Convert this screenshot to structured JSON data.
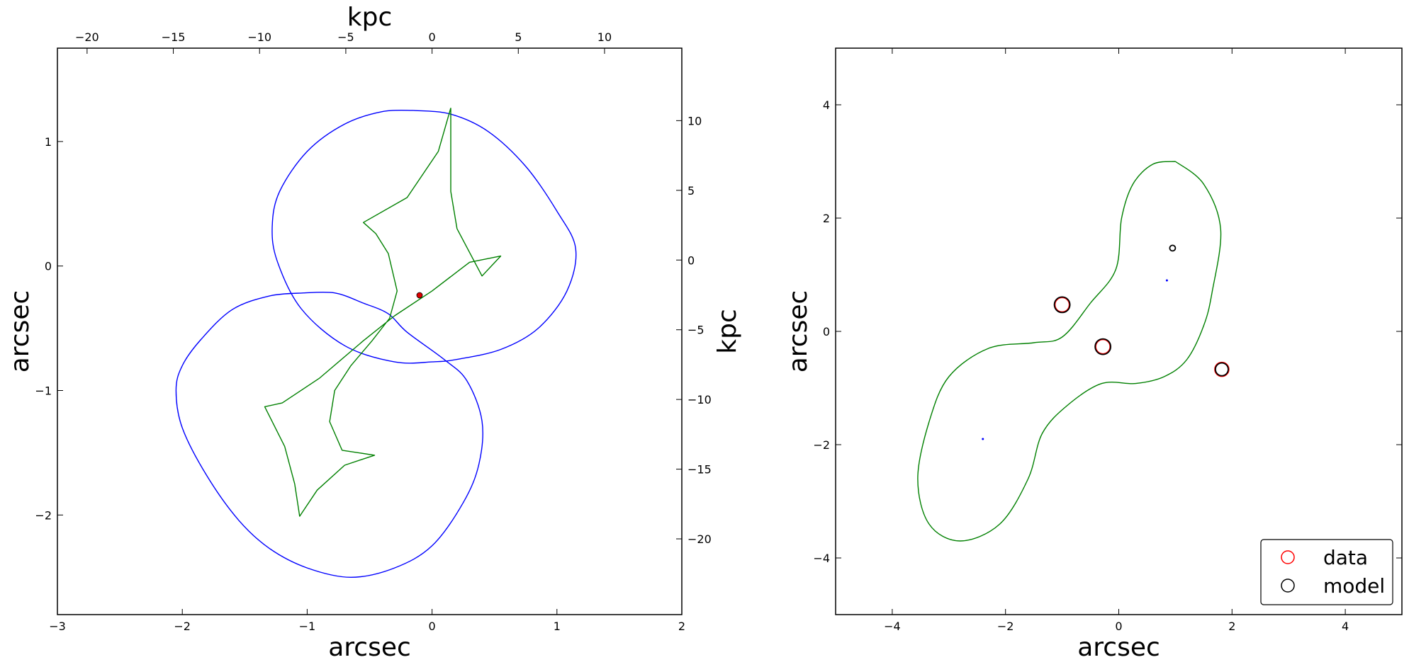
{
  "chart_data": [
    {
      "type": "line",
      "xlabel": "arcsec",
      "ylabel": "arcsec",
      "top_xlabel": "kpc",
      "right_ylabel": "kpc",
      "xlim": [
        -3,
        2
      ],
      "ylim": [
        -2.8,
        1.75
      ],
      "x_ticks": [
        -3,
        -2,
        -1,
        0,
        1,
        2
      ],
      "y_ticks": [
        -2,
        -1,
        0,
        1
      ],
      "top_ticks": [
        -20,
        -15,
        -10,
        -5,
        0,
        5,
        10
      ],
      "top_kpc_per_arcsec": 7.24,
      "top_offset_arcsec": 0,
      "right_ticks": [
        10,
        5,
        0,
        -5,
        -10,
        -15,
        -20
      ],
      "right_kpc_per_arcsec": 8.93,
      "right_offset_arcsec": 0.048,
      "tick_labels_x": [
        "−3",
        "−2",
        "−1",
        "0",
        "1",
        "2"
      ],
      "tick_labels_y": [
        "−2",
        "−1",
        "0",
        "1"
      ],
      "tick_labels_top": [
        "−20",
        "−15",
        "−10",
        "−5",
        "0",
        "5",
        "10"
      ],
      "tick_labels_right": [
        "10",
        "5",
        "0",
        "−5",
        "−10",
        "−15",
        "−20"
      ],
      "series": [
        {
          "kind": "critical-curve",
          "color": "#0000ff",
          "points": [
            [
              -1.03,
              -0.216
            ],
            [
              -0.78,
              -0.216
            ],
            [
              -0.55,
              -0.298
            ],
            [
              -0.35,
              -0.384
            ],
            [
              -0.2,
              -0.532
            ],
            [
              0.1,
              -0.753
            ],
            [
              0.28,
              -0.923
            ],
            [
              0.4,
              -1.247
            ],
            [
              0.375,
              -1.592
            ],
            [
              0.25,
              -1.9
            ],
            [
              0.0,
              -2.247
            ],
            [
              -0.3,
              -2.425
            ],
            [
              -0.65,
              -2.5
            ],
            [
              -1.0,
              -2.425
            ],
            [
              -1.3,
              -2.27
            ],
            [
              -1.55,
              -2.04
            ],
            [
              -1.8,
              -1.69
            ],
            [
              -2.0,
              -1.3
            ],
            [
              -2.05,
              -1.0
            ],
            [
              -2.0,
              -0.8
            ],
            [
              -1.85,
              -0.59
            ],
            [
              -1.6,
              -0.35
            ],
            [
              -1.3,
              -0.24
            ],
            [
              -1.03,
              -0.216
            ]
          ]
        },
        {
          "kind": "critical-curve",
          "color": "#0000ff",
          "points": [
            [
              -0.15,
              1.25
            ],
            [
              0.15,
              1.22
            ],
            [
              0.45,
              1.08
            ],
            [
              0.75,
              0.8
            ],
            [
              1.0,
              0.44
            ],
            [
              1.15,
              0.14
            ],
            [
              1.08,
              -0.2
            ],
            [
              0.85,
              -0.5
            ],
            [
              0.55,
              -0.67
            ],
            [
              0.2,
              -0.75
            ],
            [
              0.0,
              -0.77
            ],
            [
              -0.3,
              -0.77
            ],
            [
              -0.7,
              -0.64
            ],
            [
              -1.05,
              -0.34
            ],
            [
              -1.24,
              0.04
            ],
            [
              -1.28,
              0.32
            ],
            [
              -1.22,
              0.6
            ],
            [
              -1.0,
              0.92
            ],
            [
              -0.7,
              1.14
            ],
            [
              -0.4,
              1.24
            ],
            [
              -0.15,
              1.25
            ]
          ]
        },
        {
          "kind": "caustic",
          "color": "#008000",
          "points": [
            [
              0.15,
              1.27
            ],
            [
              0.05,
              0.92
            ],
            [
              -0.2,
              0.55
            ],
            [
              -0.55,
              0.35
            ],
            [
              -0.45,
              0.26
            ],
            [
              -0.35,
              0.1
            ],
            [
              -0.28,
              -0.2
            ],
            [
              -0.34,
              -0.42
            ],
            [
              -0.48,
              -0.6
            ],
            [
              -0.65,
              -0.8
            ],
            [
              -0.78,
              -1.0
            ],
            [
              -0.82,
              -1.25
            ],
            [
              -0.72,
              -1.48
            ],
            [
              -0.46,
              -1.52
            ],
            [
              -0.7,
              -1.6
            ],
            [
              -0.92,
              -1.8
            ],
            [
              -1.06,
              -2.01
            ],
            [
              -1.1,
              -1.75
            ],
            [
              -1.18,
              -1.45
            ],
            [
              -1.34,
              -1.13
            ],
            [
              -1.2,
              -1.1
            ],
            [
              -0.9,
              -0.9
            ],
            [
              -0.55,
              -0.6
            ],
            [
              -0.3,
              -0.4
            ],
            [
              0.0,
              -0.2
            ],
            [
              0.3,
              0.03
            ],
            [
              0.55,
              0.08
            ],
            [
              0.4,
              -0.08
            ],
            [
              0.2,
              0.3
            ],
            [
              0.15,
              0.6
            ],
            [
              0.15,
              1.27
            ]
          ]
        }
      ],
      "markers": [
        {
          "kind": "source",
          "x": -0.1,
          "y": -0.235,
          "color": "#dd0000"
        }
      ]
    },
    {
      "type": "scatter",
      "xlabel": "arcsec",
      "ylabel": "arcsec",
      "xlim": [
        -5,
        5
      ],
      "ylim": [
        -5,
        5
      ],
      "x_ticks": [
        -4,
        -2,
        0,
        2,
        4
      ],
      "y_ticks": [
        -4,
        -2,
        0,
        2,
        4
      ],
      "tick_labels_x": [
        "−4",
        "−2",
        "0",
        "2",
        "4"
      ],
      "tick_labels_y": [
        "−4",
        "−2",
        "0",
        "2",
        "4"
      ],
      "curve": {
        "color": "#008000",
        "points": [
          [
            1.0,
            3.0
          ],
          [
            1.5,
            2.6
          ],
          [
            1.8,
            1.8
          ],
          [
            1.65,
            0.7
          ],
          [
            1.5,
            0.1
          ],
          [
            1.2,
            -0.5
          ],
          [
            0.8,
            -0.8
          ],
          [
            0.3,
            -0.92
          ],
          [
            -0.3,
            -0.92
          ],
          [
            -0.9,
            -1.3
          ],
          [
            -1.35,
            -1.8
          ],
          [
            -1.6,
            -2.6
          ],
          [
            -2.1,
            -3.4
          ],
          [
            -2.8,
            -3.7
          ],
          [
            -3.35,
            -3.4
          ],
          [
            -3.55,
            -2.6
          ],
          [
            -3.35,
            -1.6
          ],
          [
            -3.0,
            -0.8
          ],
          [
            -2.3,
            -0.3
          ],
          [
            -1.5,
            -0.2
          ],
          [
            -1.0,
            -0.1
          ],
          [
            -0.5,
            0.5
          ],
          [
            -0.05,
            1.1
          ],
          [
            0.05,
            2.0
          ],
          [
            0.25,
            2.6
          ],
          [
            0.6,
            2.95
          ],
          [
            1.0,
            3.0
          ]
        ]
      },
      "legend": {
        "position": "lower-right",
        "entries": [
          {
            "label": "data",
            "color": "#ff0000"
          },
          {
            "label": "model",
            "color": "#000000"
          }
        ]
      },
      "data_points": [
        {
          "x": -1.0,
          "y": 0.47
        },
        {
          "x": -0.28,
          "y": -0.27
        },
        {
          "x": 1.82,
          "y": -0.67
        }
      ],
      "model_points": [
        {
          "x": -1.0,
          "y": 0.47,
          "size": "large"
        },
        {
          "x": -0.28,
          "y": -0.27,
          "size": "large"
        },
        {
          "x": 1.82,
          "y": -0.67,
          "size": "medium"
        },
        {
          "x": 0.95,
          "y": 1.47,
          "size": "small"
        }
      ],
      "source_points": [
        {
          "x": 0.85,
          "y": 0.9,
          "color": "#0000ff"
        },
        {
          "x": -2.4,
          "y": -1.9,
          "color": "#0000ff"
        }
      ]
    }
  ]
}
